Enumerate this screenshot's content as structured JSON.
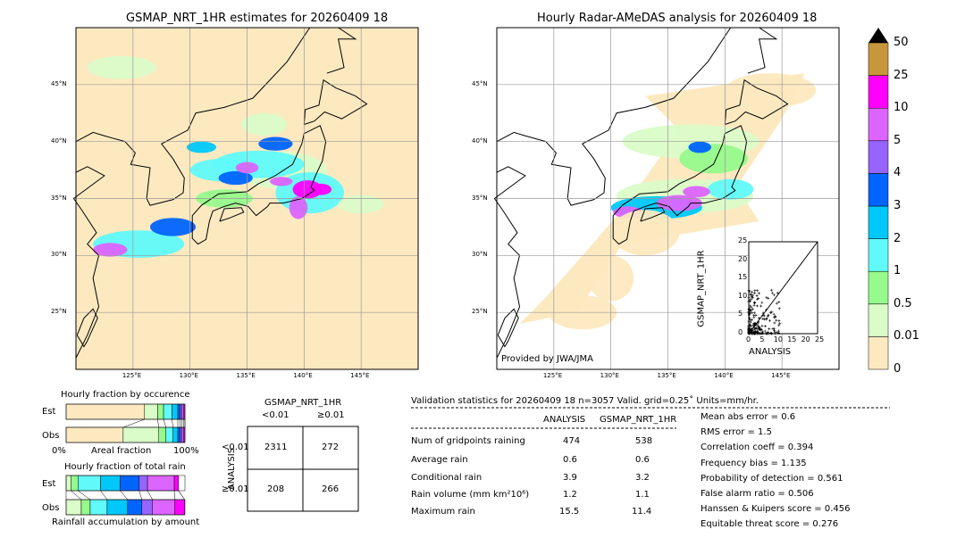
{
  "left_map": {
    "title": "GSMAP_NRT_1HR estimates for 20260409 18"
  },
  "right_map": {
    "title": "Hourly Radar-AMeDAS analysis for 20260409 18",
    "credit": "Provided by JWA/JMA"
  },
  "lon_ticks": [
    "125°E",
    "130°E",
    "135°E",
    "140°E",
    "145°E"
  ],
  "lat_ticks": [
    "45°N",
    "40°N",
    "35°N",
    "30°N",
    "25°N"
  ],
  "colorbar": {
    "levels": [
      "0",
      "0.01",
      "0.5",
      "1",
      "2",
      "3",
      "4",
      "5",
      "10",
      "25",
      "50"
    ],
    "colors": [
      "#fde9c0",
      "#dafcc8",
      "#96fa8c",
      "#60fafa",
      "#00c8fa",
      "#0064ff",
      "#9664ff",
      "#dc64ff",
      "#ff00ff",
      "#c8963c"
    ],
    "extend": "max"
  },
  "scatter": {
    "xlabel": "ANALYSIS",
    "ylabel": "GSMAP_NRT_1HR",
    "ticks": [
      "0",
      "5",
      "10",
      "15",
      "20",
      "25"
    ],
    "range": [
      0,
      25
    ]
  },
  "occurrence": {
    "title": "Hourly fraction by occurence",
    "xlabel": "Areal fraction",
    "left": "0%",
    "right": "100%",
    "rows": [
      {
        "label": "Est",
        "values": [
          66,
          11,
          5,
          7,
          5,
          2,
          1.5,
          1.5,
          1,
          0
        ]
      },
      {
        "label": "Obs",
        "values": [
          48,
          30,
          6,
          6,
          4,
          2,
          1.5,
          1.5,
          1,
          0
        ]
      }
    ]
  },
  "total_rain": {
    "title": "Hourly fraction of total rain",
    "xlabel": "Rainfall accumulation by amount",
    "rows": [
      {
        "label": "Est",
        "values": [
          0,
          4,
          6,
          19,
          16.5,
          16,
          7,
          22.5,
          3.5,
          0
        ]
      },
      {
        "label": "Obs",
        "values": [
          0,
          12.75,
          7.5,
          14.25,
          17.25,
          12,
          9,
          18.75,
          8.25,
          0
        ]
      }
    ]
  },
  "contingency": {
    "title": "GSMAP_NRT_1HR",
    "col_labels": [
      "<0.01",
      "≥0.01"
    ],
    "row_title": "ANALYSIS",
    "row_labels": [
      "<0.01",
      "≥0.01"
    ],
    "cells": [
      [
        "2311",
        "272"
      ],
      [
        "208",
        "266"
      ]
    ]
  },
  "stats": {
    "header": "Validation statistics for 20260409 18  n=3057 Valid. grid=0.25˚ Units=mm/hr.",
    "col_headers": [
      "ANALYSIS",
      "GSMAP_NRT_1HR"
    ],
    "rows": [
      {
        "label": "Num of gridpoints raining",
        "a": "474",
        "g": "538"
      },
      {
        "label": "Average rain",
        "a": "0.6",
        "g": "0.6"
      },
      {
        "label": "Conditional rain",
        "a": "3.9",
        "g": "3.2"
      },
      {
        "label": "Rain volume (mm km²10⁶)",
        "a": "1.2",
        "g": "1.1"
      },
      {
        "label": "Maximum rain",
        "a": "15.5",
        "g": "11.4"
      }
    ],
    "scores": [
      "Mean abs error =    0.6",
      "RMS error =    1.5",
      "Correlation coeff =  0.394",
      "Frequency bias =  1.135",
      "Probability of detection =  0.561",
      "False alarm ratio =  0.506",
      "Hanssen & Kuipers score =  0.456",
      "Equitable threat score =  0.276"
    ]
  }
}
